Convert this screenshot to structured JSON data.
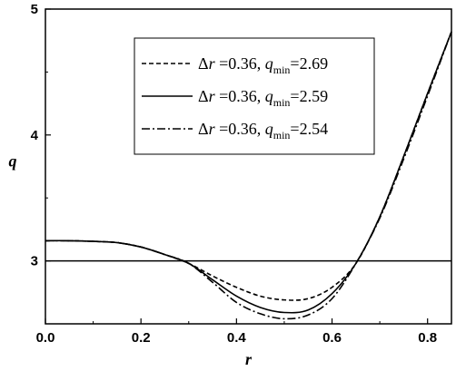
{
  "chart_data": {
    "type": "line",
    "title": "",
    "xlabel": "r",
    "ylabel": "q",
    "xlim": [
      0.0,
      0.85
    ],
    "ylim": [
      2.5,
      5.0
    ],
    "xticks": [
      0.0,
      0.2,
      0.4,
      0.6,
      0.8
    ],
    "xtick_labels": [
      "0.0",
      "0.2",
      "0.4",
      "0.6",
      "0.8"
    ],
    "yticks": [
      3,
      4,
      5
    ],
    "ytick_labels": [
      "3",
      "4",
      "5"
    ],
    "grid": false,
    "legend_position": "top-center",
    "reference_line": {
      "y": 3.0
    },
    "series": [
      {
        "name": "Δr =0.36, q_min=2.69",
        "legend": {
          "delta": "Δ",
          "r": "r",
          "eq1": " =0.36, ",
          "q": "q",
          "sub": "min",
          "eq2": "=2.69"
        },
        "style": "dashed",
        "x": [
          0.0,
          0.05,
          0.1,
          0.15,
          0.2,
          0.25,
          0.3,
          0.35,
          0.4,
          0.45,
          0.5,
          0.55,
          0.6,
          0.65,
          0.7,
          0.75,
          0.8,
          0.85
        ],
        "y": [
          3.16,
          3.16,
          3.155,
          3.145,
          3.11,
          3.05,
          2.98,
          2.88,
          2.79,
          2.72,
          2.69,
          2.7,
          2.79,
          2.98,
          3.35,
          3.83,
          4.33,
          4.82
        ]
      },
      {
        "name": "Δr =0.36, q_min=2.59",
        "legend": {
          "delta": "Δ",
          "r": "r",
          "eq1": " =0.36, ",
          "q": "q",
          "sub": "min",
          "eq2": "=2.59"
        },
        "style": "solid",
        "x": [
          0.0,
          0.05,
          0.1,
          0.15,
          0.2,
          0.25,
          0.3,
          0.35,
          0.4,
          0.45,
          0.5,
          0.55,
          0.6,
          0.65,
          0.7,
          0.75,
          0.8,
          0.85
        ],
        "y": [
          3.16,
          3.16,
          3.155,
          3.145,
          3.11,
          3.05,
          2.98,
          2.85,
          2.72,
          2.63,
          2.59,
          2.61,
          2.74,
          2.98,
          3.35,
          3.83,
          4.33,
          4.82
        ]
      },
      {
        "name": "Δr =0.36, q_min=2.54",
        "legend": {
          "delta": "Δ",
          "r": "r",
          "eq1": " =0.36, ",
          "q": "q",
          "sub": "min",
          "eq2": "=2.54"
        },
        "style": "dash-dot",
        "x": [
          0.0,
          0.05,
          0.1,
          0.15,
          0.2,
          0.25,
          0.3,
          0.35,
          0.4,
          0.45,
          0.5,
          0.55,
          0.6,
          0.65,
          0.7,
          0.75,
          0.8,
          0.85
        ],
        "y": [
          3.16,
          3.16,
          3.155,
          3.145,
          3.11,
          3.05,
          2.98,
          2.83,
          2.67,
          2.58,
          2.54,
          2.57,
          2.7,
          2.98,
          3.34,
          3.81,
          4.31,
          4.82
        ]
      }
    ]
  }
}
